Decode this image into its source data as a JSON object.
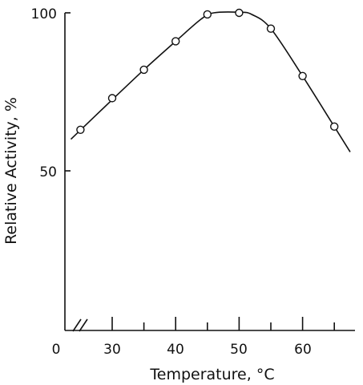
{
  "chart_data": {
    "type": "line",
    "xlabel": "Temperature, °C",
    "ylabel": "Relative Activity, %",
    "x_tick_labels": [
      "0",
      "30",
      "40",
      "50",
      "60"
    ],
    "x_ticks_major": [
      30,
      40,
      50,
      60
    ],
    "x_ticks_minor": [
      35,
      45,
      55,
      65
    ],
    "y_tick_labels": [
      "100",
      "50"
    ],
    "y_ticks": [
      100,
      50
    ],
    "axis_break": "x",
    "xlim": [
      24,
      68
    ],
    "ylim": [
      0,
      100
    ],
    "grid": false,
    "points": [
      {
        "x": 25,
        "y": 63
      },
      {
        "x": 30,
        "y": 73
      },
      {
        "x": 35,
        "y": 82
      },
      {
        "x": 40,
        "y": 91
      },
      {
        "x": 45,
        "y": 99.5
      },
      {
        "x": 50,
        "y": 100
      },
      {
        "x": 55,
        "y": 95
      },
      {
        "x": 60,
        "y": 80
      },
      {
        "x": 65,
        "y": 64
      }
    ],
    "curve": [
      {
        "x": 23.5,
        "y": 60
      },
      {
        "x": 30,
        "y": 72.5
      },
      {
        "x": 35,
        "y": 82
      },
      {
        "x": 40,
        "y": 91
      },
      {
        "x": 44,
        "y": 98
      },
      {
        "x": 46,
        "y": 100
      },
      {
        "x": 50,
        "y": 100.2
      },
      {
        "x": 52,
        "y": 99.5
      },
      {
        "x": 55,
        "y": 95
      },
      {
        "x": 60,
        "y": 80
      },
      {
        "x": 65,
        "y": 64
      },
      {
        "x": 67.5,
        "y": 56
      }
    ]
  }
}
